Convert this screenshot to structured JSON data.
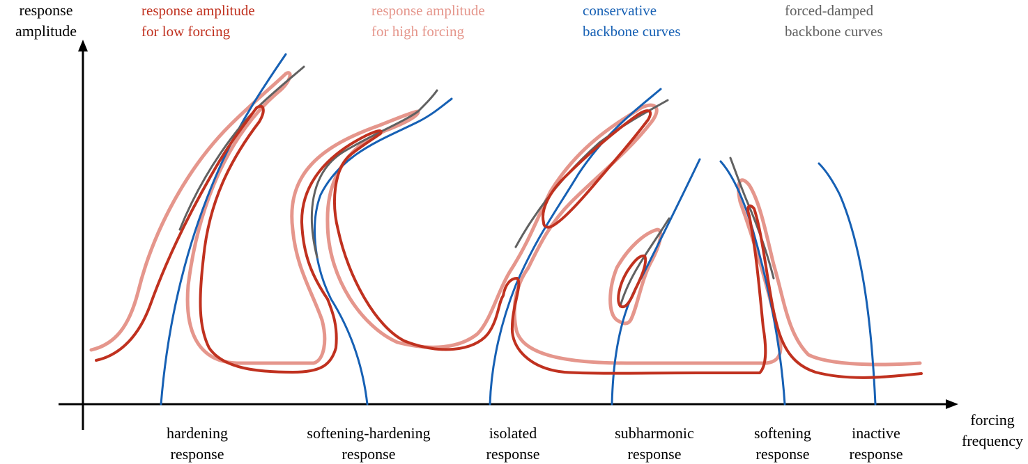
{
  "axes": {
    "y_label": [
      "response",
      "amplitude"
    ],
    "x_label": [
      "forcing",
      "frequency"
    ]
  },
  "legend": [
    {
      "id": "low",
      "lines": [
        "response amplitude",
        "for low forcing"
      ],
      "color": "#c0311f"
    },
    {
      "id": "high",
      "lines": [
        "response amplitude",
        "for high forcing"
      ],
      "color": "#e5968c"
    },
    {
      "id": "conservative",
      "lines": [
        "conservative",
        "backbone curves"
      ],
      "color": "#1660b4"
    },
    {
      "id": "damped",
      "lines": [
        "forced-damped",
        "backbone curves"
      ],
      "color": "#616161"
    }
  ],
  "responses": [
    {
      "id": "hardening",
      "lines": [
        "hardening",
        "response"
      ]
    },
    {
      "id": "softening-hardening",
      "lines": [
        "softening-hardening",
        "response"
      ]
    },
    {
      "id": "isolated",
      "lines": [
        "isolated",
        "response"
      ]
    },
    {
      "id": "subharmonic",
      "lines": [
        "subharmonic",
        "response"
      ]
    },
    {
      "id": "softening",
      "lines": [
        "softening",
        "response"
      ]
    },
    {
      "id": "inactive",
      "lines": [
        "inactive",
        "response"
      ]
    }
  ],
  "colors": {
    "axis": "#000000",
    "low_forcing": "#c0311f",
    "high_forcing": "#e5968c",
    "conservative": "#1660b4",
    "damped": "#616161"
  }
}
